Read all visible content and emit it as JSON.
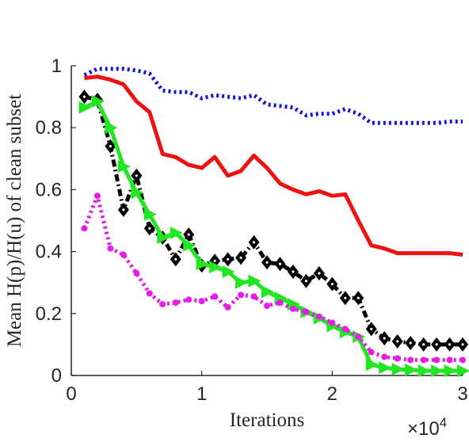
{
  "chart_data": {
    "type": "line",
    "xlabel": "Iterations",
    "ylabel": "Mean H(p)/H(u) of clean subset",
    "x_multiplier_label": "×10",
    "x_multiplier_exp": "4",
    "xlim": [
      0,
      3
    ],
    "ylim": [
      0,
      1
    ],
    "x_ticks": [
      0,
      1,
      2,
      3
    ],
    "x_tick_labels": [
      "0",
      "1",
      "2",
      "3"
    ],
    "y_ticks": [
      0,
      0.2,
      0.4,
      0.6,
      0.8,
      1
    ],
    "y_tick_labels": [
      "0",
      "0.2",
      "0.4",
      "0.6",
      "0.8",
      "1"
    ],
    "grid": false,
    "x": [
      0.1,
      0.2,
      0.3,
      0.4,
      0.5,
      0.6,
      0.7,
      0.8,
      0.9,
      1.0,
      1.1,
      1.2,
      1.3,
      1.4,
      1.5,
      1.6,
      1.7,
      1.8,
      1.9,
      2.0,
      2.1,
      2.2,
      2.3,
      2.4,
      2.5,
      2.6,
      2.7,
      2.8,
      2.9,
      3.0
    ],
    "series": [
      {
        "color": "#1515d6",
        "line_style": "dotted",
        "marker": "none",
        "values": [
          0.97,
          0.99,
          0.99,
          0.99,
          0.985,
          0.975,
          0.92,
          0.915,
          0.915,
          0.895,
          0.905,
          0.9,
          0.895,
          0.905,
          0.875,
          0.87,
          0.865,
          0.84,
          0.845,
          0.845,
          0.86,
          0.845,
          0.815,
          0.815,
          0.815,
          0.815,
          0.815,
          0.815,
          0.82,
          0.82
        ]
      },
      {
        "color": "#ee1111",
        "line_style": "solid",
        "marker": "none",
        "values": [
          0.96,
          0.965,
          0.955,
          0.94,
          0.885,
          0.85,
          0.715,
          0.705,
          0.68,
          0.67,
          0.705,
          0.645,
          0.66,
          0.71,
          0.67,
          0.62,
          0.6,
          0.585,
          0.595,
          0.58,
          0.585,
          0.5,
          0.42,
          0.41,
          0.395,
          0.395,
          0.395,
          0.395,
          0.395,
          0.39
        ]
      },
      {
        "color": "#000000",
        "line_style": "dashdot",
        "marker": "diamond",
        "values": [
          0.9,
          0.89,
          0.74,
          0.535,
          0.645,
          0.475,
          0.445,
          0.375,
          0.455,
          0.355,
          0.37,
          0.375,
          0.38,
          0.43,
          0.365,
          0.36,
          0.335,
          0.305,
          0.33,
          0.295,
          0.25,
          0.25,
          0.15,
          0.12,
          0.11,
          0.105,
          0.1,
          0.1,
          0.1,
          0.1
        ]
      },
      {
        "color": "#22e622",
        "line_style": "solid",
        "marker": "triangle-right",
        "values": [
          0.865,
          0.885,
          0.8,
          0.675,
          0.59,
          0.52,
          0.445,
          0.46,
          0.42,
          0.36,
          0.35,
          0.335,
          0.3,
          0.305,
          0.27,
          0.25,
          0.23,
          0.205,
          0.185,
          0.16,
          0.14,
          0.125,
          0.035,
          0.025,
          0.02,
          0.018,
          0.015,
          0.015,
          0.015,
          0.015
        ]
      },
      {
        "color": "#e51ee5",
        "line_style": "dotted",
        "marker": "dot",
        "values": [
          0.475,
          0.58,
          0.41,
          0.39,
          0.33,
          0.265,
          0.23,
          0.235,
          0.245,
          0.24,
          0.255,
          0.22,
          0.26,
          0.255,
          0.225,
          0.235,
          0.215,
          0.205,
          0.19,
          0.17,
          0.15,
          0.125,
          0.075,
          0.06,
          0.055,
          0.05,
          0.05,
          0.05,
          0.05,
          0.05
        ]
      }
    ]
  }
}
